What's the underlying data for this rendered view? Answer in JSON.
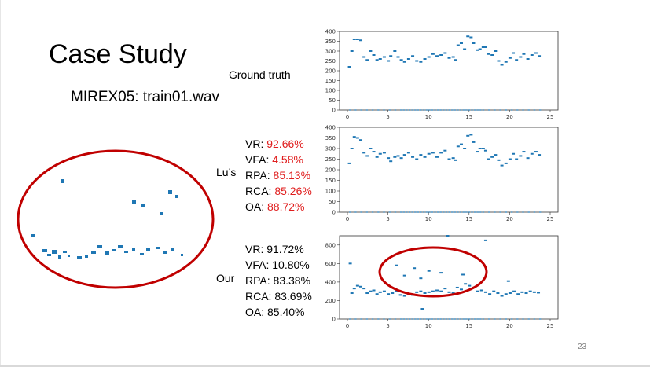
{
  "slide": {
    "title": "Case Study",
    "subtitle": "MIREX05: train01.wav",
    "ground_truth_label": "Ground truth",
    "page_number": "23",
    "highlight_color": "#c00000",
    "accent_color": "#e01d1d",
    "plot_color": "#1f77b4"
  },
  "methods": [
    {
      "name": "Lu’s",
      "metrics": [
        {
          "label": "VR:",
          "value": "92.66%",
          "highlight": true
        },
        {
          "label": "VFA:",
          "value": "4.58%",
          "highlight": true
        },
        {
          "label": "RPA:",
          "value": "85.13%",
          "highlight": true
        },
        {
          "label": "RCA:",
          "value": "85.26%",
          "highlight": true
        },
        {
          "label": "OA:",
          "value": "88.72%",
          "highlight": true
        }
      ]
    },
    {
      "name": "Our",
      "metrics": [
        {
          "label": "VR:",
          "value": "91.72%",
          "highlight": false
        },
        {
          "label": "VFA:",
          "value": "10.80%",
          "highlight": false
        },
        {
          "label": "RPA:",
          "value": "83.38%",
          "highlight": false
        },
        {
          "label": "RCA:",
          "value": "83.69%",
          "highlight": false
        },
        {
          "label": "OA:",
          "value": "85.40%",
          "highlight": false
        }
      ]
    }
  ],
  "chart_data": [
    {
      "type": "scatter",
      "xlim": [
        0,
        25
      ],
      "ylim": [
        0,
        400
      ],
      "xticks": [
        0,
        5,
        10,
        15,
        20,
        25
      ],
      "yticks": [
        0,
        50,
        100,
        150,
        200,
        250,
        300,
        350,
        400
      ],
      "series": [
        {
          "points": [
            [
              0.2,
              220
            ],
            [
              0.5,
              300
            ],
            [
              0.8,
              360
            ],
            [
              1.2,
              360
            ],
            [
              1.6,
              355
            ],
            [
              2,
              270
            ],
            [
              2.4,
              255
            ],
            [
              2.8,
              300
            ],
            [
              3.2,
              280
            ],
            [
              3.6,
              255
            ],
            [
              4,
              260
            ],
            [
              4.5,
              270
            ],
            [
              5,
              250
            ],
            [
              5.3,
              275
            ],
            [
              5.8,
              300
            ],
            [
              6.2,
              270
            ],
            [
              6.6,
              255
            ],
            [
              7,
              245
            ],
            [
              7.5,
              260
            ],
            [
              8,
              275
            ],
            [
              8.5,
              250
            ],
            [
              9,
              245
            ],
            [
              9.5,
              260
            ],
            [
              10,
              270
            ],
            [
              10.5,
              285
            ],
            [
              11,
              275
            ],
            [
              11.5,
              280
            ],
            [
              12,
              290
            ],
            [
              12.5,
              265
            ],
            [
              13,
              270
            ],
            [
              13.3,
              255
            ],
            [
              13.6,
              330
            ],
            [
              14,
              340
            ],
            [
              14.4,
              310
            ],
            [
              14.8,
              375
            ],
            [
              15.2,
              370
            ],
            [
              15.5,
              340
            ],
            [
              16,
              305
            ],
            [
              16.3,
              310
            ],
            [
              16.7,
              320
            ],
            [
              17,
              320
            ],
            [
              17.3,
              285
            ],
            [
              17.8,
              280
            ],
            [
              18.2,
              300
            ],
            [
              18.6,
              250
            ],
            [
              19,
              230
            ],
            [
              19.5,
              245
            ],
            [
              20,
              265
            ],
            [
              20.4,
              290
            ],
            [
              20.8,
              255
            ],
            [
              21.3,
              270
            ],
            [
              21.7,
              285
            ],
            [
              22.2,
              260
            ],
            [
              22.7,
              280
            ],
            [
              23.2,
              290
            ],
            [
              23.6,
              275
            ]
          ]
        }
      ]
    },
    {
      "type": "scatter",
      "xlim": [
        0,
        25
      ],
      "ylim": [
        0,
        400
      ],
      "xticks": [
        0,
        5,
        10,
        15,
        20,
        25
      ],
      "yticks": [
        0,
        50,
        100,
        150,
        200,
        250,
        300,
        350,
        400
      ],
      "series": [
        {
          "points": [
            [
              0.2,
              230
            ],
            [
              0.5,
              300
            ],
            [
              0.8,
              355
            ],
            [
              1.2,
              350
            ],
            [
              1.6,
              340
            ],
            [
              2,
              280
            ],
            [
              2.4,
              265
            ],
            [
              2.8,
              300
            ],
            [
              3.2,
              285
            ],
            [
              3.6,
              260
            ],
            [
              4,
              275
            ],
            [
              4.5,
              280
            ],
            [
              5,
              255
            ],
            [
              5.3,
              240
            ],
            [
              5.8,
              260
            ],
            [
              6.2,
              265
            ],
            [
              6.6,
              255
            ],
            [
              7,
              270
            ],
            [
              7.5,
              280
            ],
            [
              8,
              260
            ],
            [
              8.5,
              250
            ],
            [
              9,
              270
            ],
            [
              9.5,
              260
            ],
            [
              10,
              275
            ],
            [
              10.5,
              280
            ],
            [
              11,
              260
            ],
            [
              11.5,
              280
            ],
            [
              12,
              290
            ],
            [
              12.5,
              250
            ],
            [
              13,
              255
            ],
            [
              13.3,
              245
            ],
            [
              13.6,
              310
            ],
            [
              14,
              320
            ],
            [
              14.4,
              300
            ],
            [
              14.8,
              360
            ],
            [
              15.2,
              365
            ],
            [
              15.5,
              330
            ],
            [
              16,
              285
            ],
            [
              16.3,
              300
            ],
            [
              16.7,
              300
            ],
            [
              17,
              290
            ],
            [
              17.3,
              250
            ],
            [
              17.8,
              260
            ],
            [
              18.2,
              270
            ],
            [
              18.6,
              245
            ],
            [
              19,
              220
            ],
            [
              19.5,
              230
            ],
            [
              20,
              250
            ],
            [
              20.4,
              275
            ],
            [
              20.8,
              250
            ],
            [
              21.3,
              265
            ],
            [
              21.7,
              285
            ],
            [
              22.2,
              255
            ],
            [
              22.7,
              275
            ],
            [
              23.2,
              285
            ],
            [
              23.6,
              270
            ]
          ]
        }
      ]
    },
    {
      "type": "scatter",
      "xlim": [
        0,
        25
      ],
      "ylim": [
        0,
        900
      ],
      "xticks": [
        0,
        5,
        10,
        15,
        20,
        25
      ],
      "yticks": [
        0,
        200,
        400,
        600,
        800
      ],
      "series": [
        {
          "points": [
            [
              0.3,
              600
            ],
            [
              0.5,
              280
            ],
            [
              0.8,
              330
            ],
            [
              1.2,
              360
            ],
            [
              1.6,
              350
            ],
            [
              2,
              330
            ],
            [
              2.4,
              280
            ],
            [
              2.8,
              300
            ],
            [
              3.2,
              310
            ],
            [
              3.6,
              270
            ],
            [
              4,
              290
            ],
            [
              4.5,
              300
            ],
            [
              5,
              270
            ],
            [
              5.5,
              280
            ],
            [
              6,
              300
            ],
            [
              6.5,
              260
            ],
            [
              7,
              250
            ],
            [
              7.5,
              270
            ],
            [
              8,
              260
            ],
            [
              8.5,
              290
            ],
            [
              9,
              300
            ],
            [
              9.5,
              280
            ],
            [
              10,
              290
            ],
            [
              10.5,
              300
            ],
            [
              11,
              310
            ],
            [
              11.5,
              300
            ],
            [
              12,
              330
            ],
            [
              12.5,
              290
            ],
            [
              13,
              280
            ],
            [
              13.5,
              340
            ],
            [
              14,
              320
            ],
            [
              14.5,
              380
            ],
            [
              15,
              360
            ],
            [
              15.5,
              340
            ],
            [
              16,
              300
            ],
            [
              16.5,
              310
            ],
            [
              17,
              290
            ],
            [
              17.5,
              270
            ],
            [
              18,
              300
            ],
            [
              18.5,
              280
            ],
            [
              19,
              250
            ],
            [
              19.5,
              270
            ],
            [
              20,
              280
            ],
            [
              20.5,
              300
            ],
            [
              21,
              270
            ],
            [
              21.5,
              290
            ],
            [
              22,
              280
            ],
            [
              22.5,
              300
            ],
            [
              23,
              290
            ],
            [
              23.5,
              285
            ],
            [
              6,
              580
            ],
            [
              7,
              470
            ],
            [
              8.2,
              550
            ],
            [
              9,
              440
            ],
            [
              10,
              520
            ],
            [
              11.5,
              500
            ],
            [
              12.3,
              900
            ],
            [
              17,
              850
            ],
            [
              9.2,
              110
            ],
            [
              19.8,
              410
            ],
            [
              14.2,
              480
            ]
          ]
        }
      ]
    }
  ]
}
